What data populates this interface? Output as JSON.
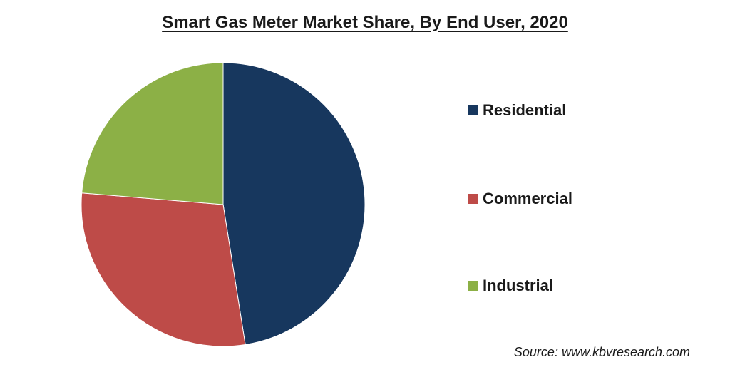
{
  "chart_data": {
    "type": "pie",
    "title": "Smart Gas Meter Market Share, By End User, 2020",
    "categories": [
      "Residential",
      "Commercial",
      "Industrial"
    ],
    "values": [
      47.5,
      28.8,
      23.7
    ],
    "colors": [
      "#17375e",
      "#be4b48",
      "#8cb046"
    ],
    "legend_position": "right",
    "start_angle_deg": 0,
    "direction": "clockwise"
  },
  "footer": {
    "source": "Source: www.kbvresearch.com"
  }
}
